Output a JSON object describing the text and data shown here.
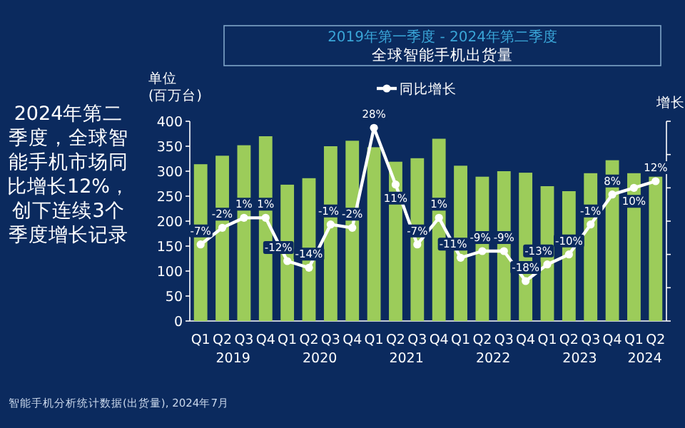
{
  "chart_data": {
    "type": "bar",
    "title": "全球智能手机出货量",
    "subtitle": "2019年第一季度 - 2024年第二季度",
    "categories": [
      "Q1",
      "Q2",
      "Q3",
      "Q4",
      "Q1",
      "Q2",
      "Q3",
      "Q4",
      "Q1",
      "Q2",
      "Q3",
      "Q4",
      "Q1",
      "Q2",
      "Q3",
      "Q4",
      "Q1",
      "Q2",
      "Q3",
      "Q4",
      "Q1",
      "Q2"
    ],
    "series": [
      {
        "color": "#9ccc5a",
        "values": [
          314,
          331,
          352,
          370,
          273,
          286,
          350,
          361,
          348,
          319,
          326,
          365,
          311,
          289,
          300,
          297,
          270,
          260,
          296,
          322,
          296,
          289
        ]
      },
      {
        "type": "line",
        "name": "同比增长",
        "axis": "y2",
        "color": "#ffffff",
        "values": [
          -7,
          -2,
          1,
          1,
          -12,
          -14,
          -1,
          -2,
          28,
          11,
          -7,
          1,
          -11,
          -9,
          -9,
          -18,
          -13,
          -10,
          -1,
          8,
          10,
          12
        ],
        "value_labels": [
          "-7%",
          "-2%",
          "1%",
          "1%",
          "-12%",
          "-14%",
          "-1%",
          "-2%",
          "28%",
          "11%",
          "-7%",
          "1%",
          "-11%",
          "-9%",
          "-9%",
          "-18%",
          "-13%",
          "-10%",
          "-1%",
          "8%",
          "10%",
          "12%"
        ]
      }
    ],
    "ylabel": "单位(百万台)",
    "y2label": "增长",
    "ylim": [
      0,
      400
    ],
    "yticks": [
      0,
      50,
      100,
      150,
      200,
      250,
      300,
      350,
      400
    ],
    "y2lim": [
      -30,
      30
    ],
    "y2ticks": [
      {
        "value": -30,
        "label": null
      },
      {
        "value": -20,
        "label": null
      },
      {
        "value": -10,
        "label": null
      },
      {
        "value": 0,
        "label": null
      },
      {
        "value": 10,
        "label": null
      },
      {
        "value": 20,
        "label": null
      },
      {
        "value": 30,
        "label": null
      }
    ],
    "legend": "top",
    "marker": "circle",
    "grid": false,
    "annotations": [
      "2024年第二季度，全球智能手机市场同比增长12%，创下连续3个季度增长记录",
      "智能手机分析统计数据(出货量), 2024年7月",
      "2019",
      "2020",
      "2021",
      "2022",
      "2023",
      "2024"
    ]
  }
}
